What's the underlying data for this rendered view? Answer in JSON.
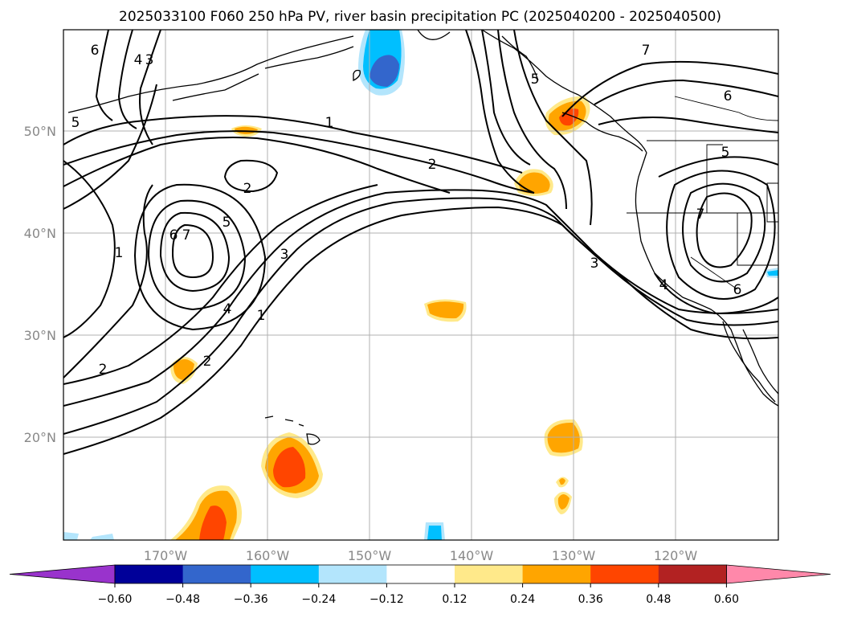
{
  "title": "2025033100 F060 250 hPa PV, river basin precipitation PC (2025040200 - 2025040500)",
  "lat_labels": [
    "50°N",
    "40°N",
    "30°N",
    "20°N"
  ],
  "lon_labels": [
    "170°W",
    "160°W",
    "150°W",
    "140°W",
    "130°W",
    "120°W"
  ],
  "contour_labels": [
    "1",
    "2",
    "3",
    "4",
    "5",
    "6",
    "7"
  ],
  "colorbar": {
    "ticks": [
      "−0.60",
      "−0.48",
      "−0.36",
      "−0.24",
      "−0.12",
      "0.12",
      "0.24",
      "0.36",
      "0.48",
      "0.60"
    ],
    "colors": [
      "#9933cc",
      "#000099",
      "#3366cc",
      "#00bfff",
      "#b3e5fc",
      "#ffffff",
      "#ffe98a",
      "#ffa500",
      "#ff4500",
      "#b22222",
      "#ff88aa"
    ]
  },
  "map_extent": {
    "lon": [
      -180,
      -110
    ],
    "lat": [
      10,
      60
    ]
  }
}
